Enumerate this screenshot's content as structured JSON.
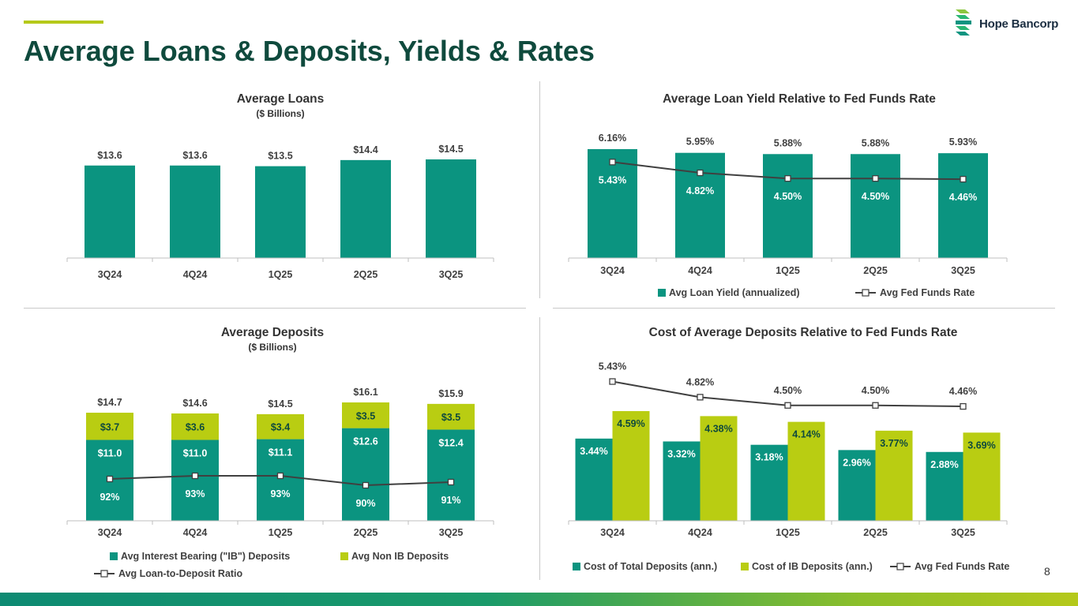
{
  "page": {
    "title": "Average Loans & Deposits, Yields & Rates",
    "page_number": "8",
    "logo_text": "Hope Bancorp",
    "colors": {
      "title": "#0f4a3d",
      "accent": "#b5c91a",
      "teal": "#0b9480",
      "lime": "#b9cd12",
      "line": "#404040"
    }
  },
  "chart_data": [
    {
      "id": "avg-loans",
      "type": "bar",
      "title": "Average Loans",
      "subtitle": "($ Billions)",
      "categories": [
        "3Q24",
        "4Q24",
        "1Q25",
        "2Q25",
        "3Q25"
      ],
      "values": [
        13.6,
        13.6,
        13.5,
        14.4,
        14.5
      ],
      "data_labels": [
        "$13.6",
        "$13.6",
        "$13.5",
        "$14.4",
        "$14.5"
      ],
      "ylim": [
        0,
        16
      ],
      "legend": []
    },
    {
      "id": "loan-yield",
      "type": "bar",
      "title": "Average Loan Yield Relative to Fed Funds Rate",
      "categories": [
        "3Q24",
        "4Q24",
        "1Q25",
        "2Q25",
        "3Q25"
      ],
      "series": [
        {
          "name": "Avg Loan Yield (annualized)",
          "kind": "bar",
          "values": [
            6.16,
            5.95,
            5.88,
            5.88,
            5.93
          ],
          "labels": [
            "6.16%",
            "5.95%",
            "5.88%",
            "5.88%",
            "5.93%"
          ]
        },
        {
          "name": "Avg Fed Funds Rate",
          "kind": "line",
          "values": [
            5.43,
            4.82,
            4.5,
            4.5,
            4.46
          ],
          "labels": [
            "5.43%",
            "4.82%",
            "4.50%",
            "4.50%",
            "4.46%"
          ]
        }
      ],
      "ylim": [
        0,
        7
      ],
      "legend": [
        "Avg Loan Yield (annualized)",
        "Avg Fed Funds Rate"
      ]
    },
    {
      "id": "avg-deposits",
      "type": "bar",
      "stacked": true,
      "title": "Average Deposits",
      "subtitle": "($ Billions)",
      "categories": [
        "3Q24",
        "4Q24",
        "1Q25",
        "2Q25",
        "3Q25"
      ],
      "series": [
        {
          "name": "Avg Interest Bearing (\"IB\") Deposits",
          "kind": "bar",
          "values": [
            11.0,
            11.0,
            11.1,
            12.6,
            12.4
          ],
          "labels": [
            "$11.0",
            "$11.0",
            "$11.1",
            "$12.6",
            "$12.4"
          ]
        },
        {
          "name": "Avg Non IB Deposits",
          "kind": "bar",
          "values": [
            3.7,
            3.6,
            3.4,
            3.5,
            3.5
          ],
          "labels": [
            "$3.7",
            "$3.6",
            "$3.4",
            "$3.5",
            "$3.5"
          ]
        },
        {
          "name": "Avg Loan-to-Deposit Ratio",
          "kind": "line",
          "values": [
            92,
            93,
            93,
            90,
            91
          ],
          "labels": [
            "92%",
            "93%",
            "93%",
            "90%",
            "91%"
          ]
        }
      ],
      "totals": [
        "$14.7",
        "$14.6",
        "$14.5",
        "$16.1",
        "$15.9"
      ],
      "ylim": [
        0,
        18
      ],
      "legend": [
        "Avg Interest Bearing (\"IB\") Deposits",
        "Avg Non IB Deposits",
        "Avg Loan-to-Deposit Ratio"
      ]
    },
    {
      "id": "deposit-cost",
      "type": "bar",
      "title": "Cost of Average Deposits Relative to Fed Funds Rate",
      "categories": [
        "3Q24",
        "4Q24",
        "1Q25",
        "2Q25",
        "3Q25"
      ],
      "series": [
        {
          "name": "Cost of Total Deposits (ann.)",
          "kind": "bar",
          "values": [
            3.44,
            3.32,
            3.18,
            2.96,
            2.88
          ],
          "labels": [
            "3.44%",
            "3.32%",
            "3.18%",
            "2.96%",
            "2.88%"
          ]
        },
        {
          "name": "Cost of IB Deposits (ann.)",
          "kind": "bar",
          "values": [
            4.59,
            4.38,
            4.14,
            3.77,
            3.69
          ],
          "labels": [
            "4.59%",
            "4.38%",
            "4.14%",
            "3.77%",
            "3.69%"
          ]
        },
        {
          "name": "Avg Fed Funds Rate",
          "kind": "line",
          "values": [
            5.43,
            4.82,
            4.5,
            4.5,
            4.46
          ],
          "labels": [
            "5.43%",
            "4.82%",
            "4.50%",
            "4.50%",
            "4.46%"
          ]
        }
      ],
      "ylim": [
        0,
        6.5
      ],
      "legend": [
        "Cost of Total Deposits (ann.)",
        "Cost of IB Deposits (ann.)",
        "Avg Fed Funds Rate"
      ]
    }
  ]
}
